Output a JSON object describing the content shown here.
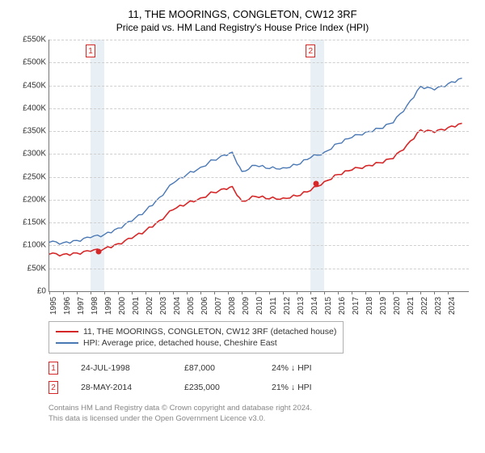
{
  "title": "11, THE MOORINGS, CONGLETON, CW12 3RF",
  "subtitle": "Price paid vs. HM Land Registry's House Price Index (HPI)",
  "chart": {
    "type": "line",
    "ylim": [
      0,
      550000
    ],
    "ytick_step": 50000,
    "yticks_fmt": [
      "£0",
      "£50K",
      "£100K",
      "£150K",
      "£200K",
      "£250K",
      "£300K",
      "£350K",
      "£400K",
      "£450K",
      "£500K",
      "£550K"
    ],
    "x_start": 1995,
    "x_end": 2025.5,
    "xticks": [
      1995,
      1996,
      1997,
      1998,
      1999,
      2000,
      2001,
      2002,
      2003,
      2004,
      2005,
      2006,
      2007,
      2008,
      2009,
      2010,
      2011,
      2012,
      2013,
      2014,
      2015,
      2016,
      2017,
      2018,
      2019,
      2020,
      2021,
      2022,
      2023,
      2024
    ],
    "shade_x": [
      1998.0,
      2014.0
    ],
    "grid_color": "#cfcfcf",
    "series": [
      {
        "name": "HPI: Average price, detached house, Cheshire East",
        "color": "#4a78b5",
        "width": 1.4,
        "data": [
          [
            1995,
            107000
          ],
          [
            1996,
            106000
          ],
          [
            1997,
            111000
          ],
          [
            1998,
            117000
          ],
          [
            1999,
            124000
          ],
          [
            2000,
            138000
          ],
          [
            2001,
            153000
          ],
          [
            2002,
            176000
          ],
          [
            2003,
            205000
          ],
          [
            2004,
            236000
          ],
          [
            2005,
            255000
          ],
          [
            2006,
            271000
          ],
          [
            2007.5,
            296000
          ],
          [
            2008.3,
            304000
          ],
          [
            2009,
            262000
          ],
          [
            2010,
            275000
          ],
          [
            2011,
            268000
          ],
          [
            2012,
            270000
          ],
          [
            2013,
            276000
          ],
          [
            2014,
            292000
          ],
          [
            2015,
            304000
          ],
          [
            2016,
            323000
          ],
          [
            2017,
            336000
          ],
          [
            2018,
            348000
          ],
          [
            2019,
            356000
          ],
          [
            2020,
            368000
          ],
          [
            2021,
            406000
          ],
          [
            2022,
            448000
          ],
          [
            2023,
            440000
          ],
          [
            2024,
            454000
          ],
          [
            2025,
            466000
          ]
        ]
      },
      {
        "name": "11, THE MOORINGS, CONGLETON, CW12 3RF (detached house)",
        "color": "#d62728",
        "width": 1.6,
        "data": [
          [
            1995,
            81000
          ],
          [
            1996,
            80500
          ],
          [
            1997,
            83500
          ],
          [
            1998,
            87000
          ],
          [
            1999,
            93000
          ],
          [
            2000,
            104000
          ],
          [
            2001,
            115500
          ],
          [
            2002,
            132500
          ],
          [
            2003,
            154500
          ],
          [
            2004,
            178000
          ],
          [
            2005,
            192000
          ],
          [
            2006,
            204000
          ],
          [
            2007.5,
            223000
          ],
          [
            2008.3,
            229000
          ],
          [
            2009,
            197000
          ],
          [
            2010,
            207000
          ],
          [
            2011,
            202000
          ],
          [
            2012,
            204000
          ],
          [
            2013,
            208000
          ],
          [
            2014,
            220000
          ],
          [
            2015,
            240000
          ],
          [
            2016,
            255000
          ],
          [
            2017,
            265000
          ],
          [
            2018,
            274000
          ],
          [
            2019,
            281000
          ],
          [
            2020,
            290000
          ],
          [
            2021,
            320000
          ],
          [
            2022,
            353000
          ],
          [
            2023,
            347000
          ],
          [
            2024,
            358000
          ],
          [
            2025,
            367000
          ]
        ]
      }
    ],
    "sale_points": [
      {
        "x": 1998.56,
        "y": 87000
      },
      {
        "x": 2014.41,
        "y": 235000
      }
    ],
    "markers": [
      {
        "label": "1",
        "x": 1998.0
      },
      {
        "label": "2",
        "x": 2014.0
      }
    ]
  },
  "legend": [
    {
      "color": "#d62728",
      "label": "11, THE MOORINGS, CONGLETON, CW12 3RF (detached house)"
    },
    {
      "color": "#4a78b5",
      "label": "HPI: Average price, detached house, Cheshire East"
    }
  ],
  "sales": [
    {
      "marker": "1",
      "date": "24-JUL-1998",
      "price": "£87,000",
      "delta": "24% ↓ HPI"
    },
    {
      "marker": "2",
      "date": "28-MAY-2014",
      "price": "£235,000",
      "delta": "21% ↓ HPI"
    }
  ],
  "footer_line1": "Contains HM Land Registry data © Crown copyright and database right 2024.",
  "footer_line2": "This data is licensed under the Open Government Licence v3.0."
}
